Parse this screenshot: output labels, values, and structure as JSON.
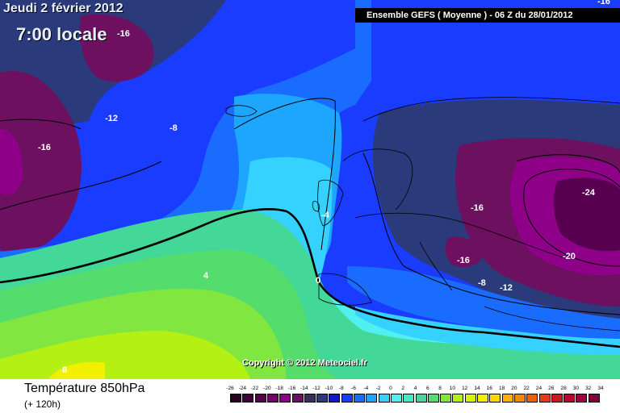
{
  "header": {
    "date": "Jeudi 2 février 2012",
    "time": "7:00 locale",
    "run_info": "Ensemble GEFS ( Moyenne )  -  06 Z du 28/01/2012",
    "corner_label": "-16"
  },
  "copyright": "Copyright © 2012 Meteociel.fr",
  "footer": {
    "variable": "Température 850hPa",
    "lead_time": "(+ 120h)"
  },
  "legend": {
    "labels": [
      "-26",
      "-24",
      "-22",
      "-20",
      "-18",
      "-16",
      "-14",
      "-12",
      "-10",
      "-8",
      "-6",
      "-4",
      "-2",
      "0",
      "2",
      "4",
      "6",
      "8",
      "10",
      "12",
      "14",
      "16",
      "18",
      "20",
      "22",
      "24",
      "26",
      "28",
      "30",
      "32",
      "34"
    ],
    "colors": [
      "#2a0020",
      "#40003a",
      "#580050",
      "#760068",
      "#8f0088",
      "#6e1060",
      "#36305a",
      "#2a3a7a",
      "#1018c8",
      "#1a3cff",
      "#1a6cff",
      "#1ea6ff",
      "#36d2ff",
      "#50f0f0",
      "#44e8c4",
      "#44d898",
      "#54dc6c",
      "#82e640",
      "#b4f014",
      "#d8f400",
      "#f0f000",
      "#fcd800",
      "#fcb000",
      "#f88800",
      "#f06000",
      "#e83818",
      "#d01818",
      "#c0002c",
      "#a00040",
      "#800040"
    ]
  },
  "contour_labels": [
    {
      "text": "-16",
      "color": "#ffffff"
    },
    {
      "text": "-12",
      "color": "#ffffff"
    },
    {
      "text": "-8",
      "color": "#ffffff"
    },
    {
      "text": "-16",
      "color": "#ffffff"
    },
    {
      "text": "-4",
      "color": "#ffffff"
    },
    {
      "text": "-16",
      "color": "#ffffff"
    },
    {
      "text": "-24",
      "color": "#ffffff"
    },
    {
      "text": "-20",
      "color": "#ffffff"
    },
    {
      "text": "-16",
      "color": "#ffffff"
    },
    {
      "text": "-8",
      "color": "#ffffff"
    },
    {
      "text": "-12",
      "color": "#ffffff"
    },
    {
      "text": "4",
      "color": "#ffffff"
    },
    {
      "text": "0",
      "color": "#ffffff"
    },
    {
      "text": "8",
      "color": "#ffffff"
    }
  ]
}
